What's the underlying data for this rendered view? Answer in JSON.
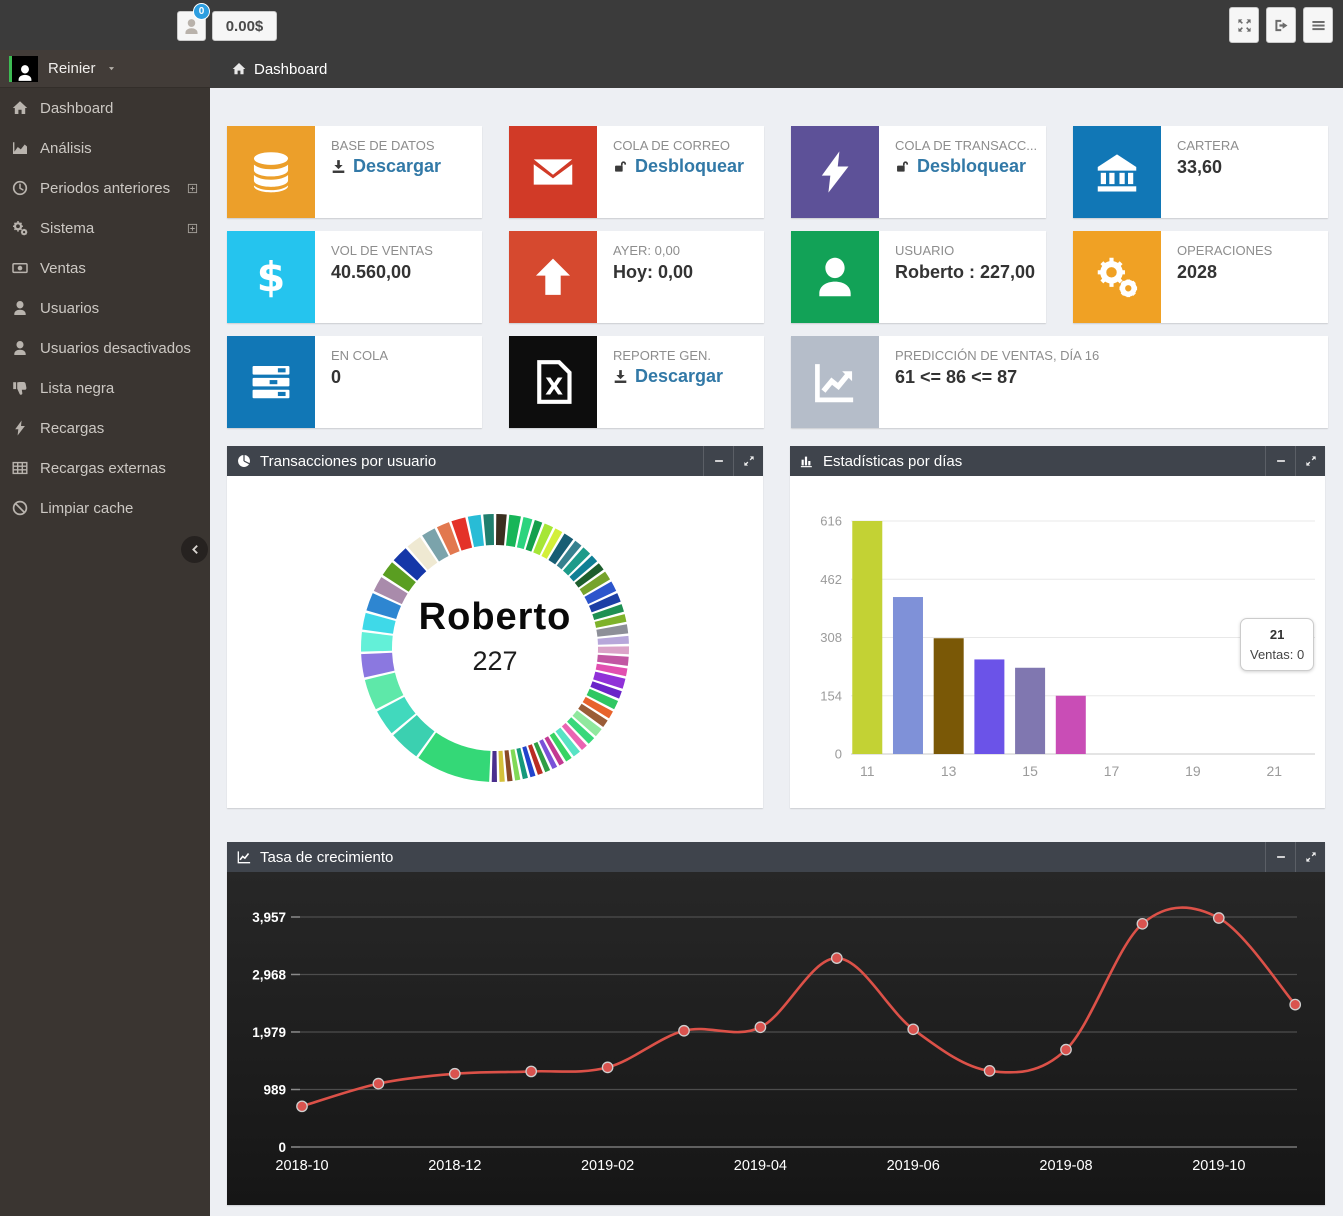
{
  "topbar": {
    "badge": "0",
    "balance": "0.00$",
    "user_button_icon": "person-icon",
    "right_buttons": [
      {
        "name": "fullscreen-button",
        "icon": "fullscreen-arrows-icon"
      },
      {
        "name": "sign-out-button",
        "icon": "sign-out-icon"
      },
      {
        "name": "menu-button",
        "icon": "menu-icon"
      }
    ]
  },
  "sidebar": {
    "user": "Reinier",
    "user_chevron_icon": "chevron-down-icon",
    "collapse_icon": "chevron-left-icon",
    "items": [
      {
        "label": "Dashboard",
        "icon": "home-icon"
      },
      {
        "label": "Análisis",
        "icon": "area-chart-icon"
      },
      {
        "label": "Periodos anteriores",
        "icon": "clock-icon",
        "expandable": true
      },
      {
        "label": "Sistema",
        "icon": "gears-icon",
        "expandable": true
      },
      {
        "label": "Ventas",
        "icon": "money-icon"
      },
      {
        "label": "Usuarios",
        "icon": "user-icon"
      },
      {
        "label": "Usuarios desactivados",
        "icon": "user-icon"
      },
      {
        "label": "Lista negra",
        "icon": "thumbs-down-icon"
      },
      {
        "label": "Recargas",
        "icon": "bolt-icon"
      },
      {
        "label": "Recargas externas",
        "icon": "table-icon"
      },
      {
        "label": "Limpiar cache",
        "icon": "ban-icon"
      }
    ]
  },
  "breadcrumb": {
    "icon": "home-icon",
    "label": "Dashboard"
  },
  "tiles": [
    {
      "label": "BASE DE DATOS",
      "action": {
        "label": "Descargar",
        "icon": "download-icon"
      },
      "icon": "database-icon",
      "color": "#ec9f2a"
    },
    {
      "label": "COLA DE CORREO",
      "action": {
        "label": "Desbloquear",
        "icon": "unlock-icon"
      },
      "icon": "envelope-icon",
      "color": "#d13a27"
    },
    {
      "label": "COLA DE TRANSACC...",
      "action": {
        "label": "Desbloquear",
        "icon": "unlock-icon"
      },
      "icon": "bolt-icon",
      "color": "#5d5198"
    },
    {
      "label": "CARTERA",
      "value": "33,60",
      "icon": "bank-icon",
      "color": "#1177b6"
    },
    {
      "label": "VOL DE VENTAS",
      "value": "40.560,00",
      "icon": "dollar-icon",
      "color": "#25c4ee"
    },
    {
      "label": "AYER: 0,00",
      "value": "Hoy: 0,00",
      "icon": "arrow-up-icon",
      "color": "#d6492f"
    },
    {
      "label": "USUARIO",
      "value": "Roberto : 227,00",
      "icon": "user-icon",
      "color": "#12a257"
    },
    {
      "label": "OPERACIONES",
      "value": "2028",
      "icon": "gears-icon",
      "color": "#f0a124"
    },
    {
      "label": "EN COLA",
      "value": "0",
      "icon": "tasks-icon",
      "color": "#1177b6"
    },
    {
      "label": "REPORTE GEN.",
      "action": {
        "label": "Descargar",
        "icon": "download-icon"
      },
      "icon": "excel-file-icon",
      "color": "#0d0d0d"
    },
    {
      "label": "PREDICCIÓN DE VENTAS, DÍA 16",
      "value": "61 <= 86 <= 87",
      "icon": "trend-icon",
      "color": "#b5bdc9",
      "wide": true
    }
  ],
  "panels": {
    "donut": {
      "title": "Transacciones por usuario",
      "icon": "pie-chart-icon"
    },
    "bar": {
      "title": "Estadísticas por días",
      "icon": "bar-chart-icon"
    },
    "line": {
      "title": "Tasa de crecimiento",
      "icon": "line-chart-icon"
    },
    "tools": [
      {
        "name": "collapse-panel-button",
        "icon": "minus-icon"
      },
      {
        "name": "expand-panel-button",
        "icon": "expand-icon"
      }
    ]
  },
  "chart_data": [
    {
      "type": "pie",
      "title": "Transacciones por usuario",
      "donut": true,
      "center_label": "Roberto",
      "center_value": "227",
      "legend": "none",
      "segments": [
        [
          "#3b2f20",
          1.0
        ],
        [
          "#17b558",
          1.1
        ],
        [
          "#2bd47e",
          0.9
        ],
        [
          "#15a04c",
          0.8
        ],
        [
          "#a6e636",
          0.9
        ],
        [
          "#d3ef3a",
          0.8
        ],
        [
          "#175d73",
          1.0
        ],
        [
          "#37818f",
          0.8
        ],
        [
          "#1d9b8a",
          0.9
        ],
        [
          "#0f7f95",
          0.8
        ],
        [
          "#1d5e2d",
          0.8
        ],
        [
          "#76a32c",
          0.9
        ],
        [
          "#2c55cc",
          1.0
        ],
        [
          "#1d3fa5",
          0.9
        ],
        [
          "#1e9052",
          0.8
        ],
        [
          "#7eb22a",
          0.8
        ],
        [
          "#8d8f98",
          0.9
        ],
        [
          "#b7a7da",
          0.8
        ],
        [
          "#dba3c8",
          0.8
        ],
        [
          "#c257a3",
          0.9
        ],
        [
          "#e24fb0",
          0.8
        ],
        [
          "#9031d8",
          1.0
        ],
        [
          "#6a25c9",
          0.8
        ],
        [
          "#2fc763",
          0.9
        ],
        [
          "#e8632c",
          0.8
        ],
        [
          "#9a5c37",
          0.8
        ],
        [
          "#90e89e",
          0.9
        ],
        [
          "#38d87b",
          0.8
        ],
        [
          "#ea64b2",
          0.7
        ],
        [
          "#58e3c4",
          0.8
        ],
        [
          "#38d463",
          0.7
        ],
        [
          "#c23a92",
          0.6
        ],
        [
          "#7a51d8",
          0.6
        ],
        [
          "#2f9e44",
          0.6
        ],
        [
          "#b92d24",
          0.6
        ],
        [
          "#2244cc",
          0.6
        ],
        [
          "#15997a",
          0.6
        ],
        [
          "#80d957",
          0.6
        ],
        [
          "#8a4a26",
          0.6
        ],
        [
          "#d4c13a",
          0.6
        ],
        [
          "#4b2f8e",
          0.6
        ],
        [
          "#34d877",
          6.0
        ],
        [
          "#3bd0b0",
          2.6
        ],
        [
          "#41d9bd",
          2.2
        ],
        [
          "#5ee8a9",
          2.6
        ],
        [
          "#8b78e0",
          2.0
        ],
        [
          "#63f0d8",
          1.7
        ],
        [
          "#3fd9e8",
          1.5
        ],
        [
          "#2e86d1",
          1.6
        ],
        [
          "#a98bab",
          1.4
        ],
        [
          "#5a9e21",
          1.4
        ],
        [
          "#1537a8",
          1.5
        ],
        [
          "#efe9d2",
          1.4
        ],
        [
          "#7ba3ab",
          1.3
        ],
        [
          "#e2784f",
          1.2
        ],
        [
          "#e43229",
          1.3
        ],
        [
          "#28bcd6",
          1.2
        ],
        [
          "#207f6e",
          1.0
        ]
      ]
    },
    {
      "type": "bar",
      "title": "Estadísticas por días",
      "categories": [
        11,
        12,
        13,
        14,
        15,
        16
      ],
      "values": [
        616,
        415,
        306,
        250,
        228,
        154
      ],
      "bar_colors": [
        "#c3d234",
        "#7f91d8",
        "#7a5806",
        "#6b53e8",
        "#8077b0",
        "#c94db6"
      ],
      "ylim": [
        0,
        616
      ],
      "yticks": [
        0,
        154,
        308,
        462,
        616
      ],
      "xticks": [
        11,
        13,
        15,
        17,
        19,
        21
      ],
      "xlim": [
        10.6,
        22.0
      ],
      "grid": true,
      "legend": "none",
      "tooltip": {
        "title": "21",
        "text": "Ventas: 0"
      }
    },
    {
      "type": "line",
      "title": "Tasa de crecimiento",
      "x": [
        "2018-10",
        "2018-11",
        "2018-12",
        "2019-01",
        "2019-02",
        "2019-03",
        "2019-04",
        "2019-05",
        "2019-06",
        "2019-07",
        "2019-08",
        "2019-09",
        "2019-10",
        "2019-11"
      ],
      "values": [
        700,
        1090,
        1260,
        1300,
        1370,
        2000,
        2060,
        3250,
        2025,
        1310,
        1675,
        3840,
        3940,
        2450
      ],
      "ylim": [
        0,
        3957
      ],
      "yticks": [
        0,
        989,
        1979,
        2968,
        3957
      ],
      "ytick_labels": [
        "0",
        "989",
        "1,979",
        "2,968",
        "3,957"
      ],
      "xtick_labels": [
        "2018-10",
        "2018-12",
        "2019-02",
        "2019-04",
        "2019-06",
        "2019-08",
        "2019-10"
      ],
      "line_color": "#dc5148",
      "marker_color": "#d9534f",
      "background": "dark",
      "grid": true
    }
  ]
}
